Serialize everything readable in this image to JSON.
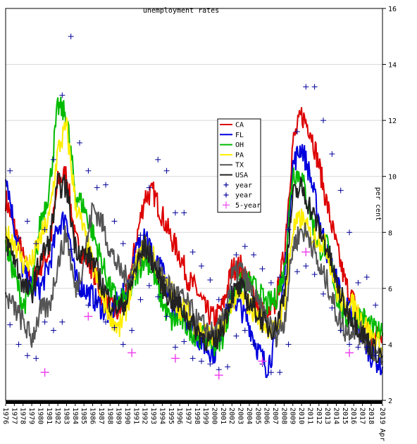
{
  "chart_data": {
    "type": "line",
    "title": "unemployment rates",
    "ylabel": "per cent",
    "xlabel": "",
    "ylim": [
      2,
      16
    ],
    "xlim": [
      1976,
      2019.3
    ],
    "yticks": [
      "2",
      "4",
      "6",
      "8",
      "10",
      "12",
      "14",
      "16"
    ],
    "xticks": [
      "1976",
      "1977",
      "1978",
      "1979",
      "1980",
      "1981",
      "1982",
      "1983",
      "1984",
      "1985",
      "1986",
      "1987",
      "1988",
      "1989",
      "1990",
      "1991",
      "1992",
      "1993",
      "1994",
      "1995",
      "1996",
      "1997",
      "1998",
      "1999",
      "2000",
      "2001",
      "2002",
      "2003",
      "2004",
      "2005",
      "2006",
      "2007",
      "2008",
      "2009",
      "2010",
      "2011",
      "2012",
      "2013",
      "2014",
      "2015",
      "2016",
      "2017",
      "2018",
      "2019 Apr"
    ],
    "grid": true,
    "legend_position": "center-right",
    "series": [
      {
        "name": "CA",
        "color": "#dd0000",
        "x": [
          1976,
          1977,
          1978,
          1979,
          1980,
          1981,
          1982,
          1983,
          1984,
          1985,
          1986,
          1987,
          1988,
          1989,
          1990,
          1991,
          1992,
          1993,
          1994,
          1995,
          1996,
          1997,
          1998,
          1999,
          2000,
          2001,
          2002,
          2003,
          2004,
          2005,
          2006,
          2007,
          2008,
          2009,
          2010,
          2011,
          2012,
          2013,
          2014,
          2015,
          2016,
          2017,
          2018,
          2019.3
        ],
        "y": [
          9.2,
          8.2,
          7.1,
          6.2,
          6.8,
          7.3,
          9.8,
          10.1,
          7.7,
          7.2,
          6.7,
          5.8,
          5.3,
          5.1,
          5.8,
          7.7,
          9.3,
          9.4,
          8.6,
          7.8,
          7.2,
          6.3,
          5.9,
          5.2,
          4.9,
          5.4,
          6.7,
          6.8,
          6.2,
          5.4,
          4.9,
          5.4,
          7.2,
          11.2,
          12.2,
          11.7,
          10.4,
          8.9,
          7.5,
          6.2,
          5.5,
          4.8,
          4.2,
          4.4
        ]
      },
      {
        "name": "FL",
        "color": "#0000dd",
        "x": [
          1976,
          1977,
          1978,
          1979,
          1980,
          1981,
          1982,
          1983,
          1984,
          1985,
          1986,
          1987,
          1988,
          1989,
          1990,
          1991,
          1992,
          1993,
          1994,
          1995,
          1996,
          1997,
          1998,
          1999,
          2000,
          2001,
          2002,
          2003,
          2004,
          2005,
          2006,
          2007,
          2008,
          2009,
          2010,
          2011,
          2012,
          2013,
          2014,
          2015,
          2016,
          2017,
          2018,
          2019.3
        ],
        "y": [
          10.2,
          8.2,
          6.6,
          6.0,
          6.0,
          6.8,
          8.2,
          8.6,
          6.3,
          6.0,
          5.7,
          5.3,
          5.0,
          5.6,
          5.9,
          7.3,
          8.2,
          7.0,
          6.6,
          5.5,
          5.1,
          4.8,
          4.3,
          3.9,
          3.7,
          4.7,
          5.7,
          5.3,
          4.7,
          3.8,
          3.2,
          4.0,
          6.3,
          10.4,
          11.1,
          10.0,
          8.5,
          7.2,
          6.3,
          5.4,
          4.9,
          4.3,
          3.6,
          3.2
        ]
      },
      {
        "name": "OH",
        "color": "#00bb00",
        "x": [
          1976,
          1977,
          1978,
          1979,
          1980,
          1981,
          1982,
          1983,
          1984,
          1985,
          1986,
          1987,
          1988,
          1989,
          1990,
          1991,
          1992,
          1993,
          1994,
          1995,
          1996,
          1997,
          1998,
          1999,
          2000,
          2001,
          2002,
          2003,
          2004,
          2005,
          2006,
          2007,
          2008,
          2009,
          2010,
          2011,
          2012,
          2013,
          2014,
          2015,
          2016,
          2017,
          2018,
          2019.3
        ],
        "y": [
          7.6,
          6.5,
          5.4,
          5.9,
          8.4,
          9.5,
          12.5,
          12.2,
          9.4,
          8.9,
          8.0,
          7.0,
          6.0,
          5.5,
          5.7,
          6.4,
          7.2,
          6.5,
          5.5,
          4.8,
          4.9,
          4.6,
          4.3,
          4.3,
          4.0,
          4.3,
          5.7,
          6.1,
          6.2,
          5.9,
          5.4,
          5.6,
          6.6,
          10.2,
          10.0,
          8.7,
          7.4,
          7.5,
          5.8,
          4.9,
          5.0,
          5.0,
          4.6,
          4.3
        ]
      },
      {
        "name": "PA",
        "color": "#ffee00",
        "x": [
          1976,
          1977,
          1978,
          1979,
          1980,
          1981,
          1982,
          1983,
          1984,
          1985,
          1986,
          1987,
          1988,
          1989,
          1990,
          1991,
          1992,
          1993,
          1994,
          1995,
          1996,
          1997,
          1998,
          1999,
          2000,
          2001,
          2002,
          2003,
          2004,
          2005,
          2006,
          2007,
          2008,
          2009,
          2010,
          2011,
          2012,
          2013,
          2014,
          2015,
          2016,
          2017,
          2018,
          2019.3
        ],
        "y": [
          7.9,
          7.7,
          6.9,
          6.9,
          7.8,
          8.5,
          10.9,
          11.8,
          9.1,
          8.0,
          6.8,
          5.7,
          5.1,
          4.5,
          5.4,
          6.9,
          7.5,
          7.1,
          6.2,
          5.9,
          5.3,
          5.2,
          4.6,
          4.4,
          4.2,
          4.7,
          5.6,
          5.7,
          5.4,
          5.0,
          4.7,
          4.4,
          5.4,
          8.1,
          8.5,
          7.9,
          7.8,
          7.4,
          5.9,
          5.3,
          5.4,
          4.9,
          4.3,
          3.9
        ]
      },
      {
        "name": "TX",
        "color": "#555555",
        "x": [
          1976,
          1977,
          1978,
          1979,
          1980,
          1981,
          1982,
          1983,
          1984,
          1985,
          1986,
          1987,
          1988,
          1989,
          1990,
          1991,
          1992,
          1993,
          1994,
          1995,
          1996,
          1997,
          1998,
          1999,
          2000,
          2001,
          2002,
          2003,
          2004,
          2005,
          2006,
          2007,
          2008,
          2009,
          2010,
          2011,
          2012,
          2013,
          2014,
          2015,
          2016,
          2017,
          2018,
          2019.3
        ],
        "y": [
          5.7,
          5.3,
          4.8,
          4.2,
          5.2,
          5.3,
          6.9,
          8.0,
          5.9,
          7.0,
          8.9,
          8.4,
          7.4,
          6.7,
          6.3,
          6.9,
          7.5,
          7.0,
          6.4,
          6.0,
          5.7,
          5.4,
          4.8,
          4.6,
          4.3,
          4.9,
          6.4,
          6.7,
          6.0,
          5.4,
          4.9,
          4.3,
          4.8,
          7.5,
          8.1,
          7.8,
          6.7,
          6.2,
          5.1,
          4.5,
          4.6,
          4.3,
          3.9,
          3.4
        ]
      },
      {
        "name": "USA",
        "color": "#222222",
        "x": [
          1976,
          1977,
          1978,
          1979,
          1980,
          1981,
          1982,
          1983,
          1984,
          1985,
          1986,
          1987,
          1988,
          1989,
          1990,
          1991,
          1992,
          1993,
          1994,
          1995,
          1996,
          1997,
          1998,
          1999,
          2000,
          2001,
          2002,
          2003,
          2004,
          2005,
          2006,
          2007,
          2008,
          2009,
          2010,
          2011,
          2012,
          2013,
          2014,
          2015,
          2016,
          2017,
          2018,
          2019.3
        ],
        "y": [
          7.7,
          7.1,
          6.1,
          5.8,
          7.1,
          7.6,
          9.7,
          9.6,
          7.5,
          7.2,
          7.0,
          6.2,
          5.5,
          5.3,
          5.6,
          6.8,
          7.5,
          6.9,
          6.1,
          5.6,
          5.4,
          4.9,
          4.5,
          4.2,
          4.0,
          4.7,
          5.8,
          6.0,
          5.5,
          5.1,
          4.6,
          4.6,
          5.8,
          9.3,
          9.6,
          8.9,
          8.1,
          7.4,
          6.2,
          5.3,
          4.9,
          4.4,
          3.9,
          3.6
        ]
      }
    ],
    "markers": [
      {
        "name": "year",
        "color": "#000099",
        "symbol": "+",
        "x": [
          1976,
          1977,
          1978,
          1979,
          1980,
          1981,
          1982,
          1983,
          1984,
          1985,
          1986,
          1987,
          1988,
          1989,
          1990,
          1991,
          1992,
          1993,
          1994,
          1995,
          1996,
          1997,
          1998,
          1999,
          2000,
          2001,
          2002,
          2003,
          2004,
          2005,
          2006,
          2007,
          2008,
          2009,
          2010,
          2011,
          2012,
          2013,
          2014,
          2015,
          2016,
          2017,
          2018
        ],
        "y": [
          10.2,
          7.8,
          8.4,
          7.6,
          8.1,
          10.6,
          12.9,
          15.0,
          11.2,
          10.2,
          9.6,
          9.7,
          8.4,
          7.6,
          6.4,
          7.9,
          9.6,
          10.6,
          10.2,
          8.7,
          8.7,
          7.3,
          6.8,
          6.3,
          5.6,
          5.3,
          7.2,
          7.5,
          7.2,
          6.7,
          6.2,
          6.4,
          8.1,
          11.6,
          13.2,
          13.2,
          12.0,
          10.8,
          9.5,
          8.0,
          6.2,
          6.4,
          5.4
        ]
      },
      {
        "name": "year",
        "color": "#000099",
        "symbol": "+",
        "x": [
          1976,
          1977,
          1978,
          1979,
          1980,
          1981,
          1982,
          1983,
          1984,
          1985,
          1986,
          1987,
          1988,
          1989,
          1990,
          1991,
          1992,
          1993,
          1994,
          1995,
          1996,
          1997,
          1998,
          1999,
          2000,
          2001,
          2002,
          2003,
          2004,
          2005,
          2006,
          2007,
          2008,
          2009,
          2010,
          2011,
          2012,
          2013,
          2014,
          2015,
          2016,
          2017,
          2018
        ],
        "y": [
          4.7,
          4.0,
          3.6,
          3.5,
          4.8,
          4.5,
          4.8,
          7.4,
          5.8,
          5.4,
          5.5,
          4.8,
          4.6,
          4.0,
          4.5,
          5.6,
          6.1,
          5.7,
          5.0,
          3.9,
          4.1,
          3.5,
          3.4,
          3.3,
          3.1,
          3.2,
          4.3,
          4.5,
          4.0,
          3.3,
          3.0,
          3.0,
          4.0,
          6.6,
          6.8,
          6.5,
          5.8,
          5.3,
          4.5,
          4.0,
          3.9,
          3.9,
          3.6
        ]
      },
      {
        "name": "5-year",
        "color": "#ee44ee",
        "symbol": "+",
        "x": [
          1980,
          1985,
          1990,
          1995,
          2000,
          2005,
          2010,
          2015
        ],
        "y": [
          3.0,
          5.0,
          3.7,
          3.5,
          2.9,
          3.4,
          7.3,
          3.7
        ]
      }
    ]
  }
}
